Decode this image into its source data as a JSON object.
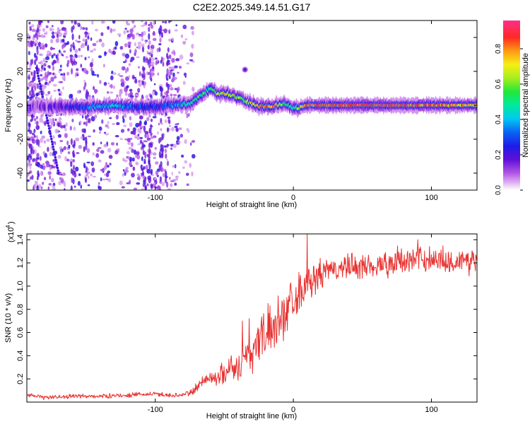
{
  "title": "C2E2.2025.349.14.51.G17",
  "colors": {
    "snr_line": "#e8312f",
    "axis": "#000000",
    "background": "#ffffff"
  },
  "chart_data": [
    {
      "type": "heatmap",
      "id": "spectrogram",
      "xlabel": "Height of straight line (km)",
      "ylabel": "Frequency (Hz)",
      "xlim": [
        -193,
        133
      ],
      "ylim": [
        -50,
        50
      ],
      "xticks": [
        -100,
        0,
        100
      ],
      "yticks": [
        -40,
        -20,
        0,
        20,
        40
      ],
      "colorbar": {
        "label": "Normalized spectral amplitude",
        "range": [
          0,
          0.96
        ],
        "ticks": [
          "0.0",
          "0.2",
          "0.4",
          "0.6",
          "0.8"
        ],
        "colormap": "rainbow (white-magenta-purple-blue-cyan-green-yellow-orange-red-pink)"
      },
      "ridge": {
        "description": "dominant frequency vs height",
        "height_km": [
          -193,
          -185,
          -175,
          -165,
          -150,
          -130,
          -115,
          -100,
          -92,
          -85,
          -75,
          -68,
          -60,
          -55,
          -48,
          -42,
          -35,
          -28,
          -20,
          -12,
          -5,
          0,
          10,
          30,
          60,
          100,
          133
        ],
        "frequency_hz": [
          -2,
          0,
          -1,
          -1,
          -1,
          0,
          -1,
          -1,
          0,
          0,
          1,
          5,
          10,
          7,
          7,
          5,
          3,
          0,
          -1,
          0,
          1,
          -2,
          0,
          0,
          0,
          0,
          0
        ],
        "amplitude": [
          0.2,
          0.15,
          0.15,
          0.2,
          0.3,
          0.45,
          0.3,
          0.25,
          0.3,
          0.4,
          0.5,
          0.55,
          0.6,
          0.7,
          0.75,
          0.7,
          0.6,
          0.75,
          0.85,
          0.8,
          0.55,
          0.5,
          0.9,
          0.9,
          0.9,
          0.85,
          0.8
        ]
      },
      "annotations": [
        "diagonal streak from about -185 km at 20 Hz to -170 km at -40 Hz",
        "isolated blob near -35 km at 20 Hz"
      ]
    },
    {
      "type": "line",
      "id": "snr",
      "xlabel": "Height of straight line (km)",
      "ylabel": "SNR (10 * v/v)",
      "multiplier_label": "(x10",
      "multiplier_exponent": "4",
      "xlim": [
        -193,
        133
      ],
      "ylim": [
        0.0,
        1.45
      ],
      "xticks": [
        -100,
        0,
        100
      ],
      "yticks": [
        "0.2",
        "0.4",
        "0.6",
        "0.8",
        "1.0",
        "1.2",
        "1.4"
      ],
      "series": [
        {
          "name": "SNR",
          "x": [
            -193,
            -180,
            -160,
            -140,
            -120,
            -100,
            -90,
            -80,
            -75,
            -70,
            -65,
            -60,
            -55,
            -50,
            -45,
            -40,
            -35,
            -30,
            -25,
            -20,
            -15,
            -10,
            -5,
            0,
            5,
            10,
            15,
            20,
            25,
            30,
            40,
            50,
            60,
            70,
            80,
            90,
            100,
            110,
            120,
            133
          ],
          "values": [
            0.06,
            0.04,
            0.05,
            0.05,
            0.06,
            0.07,
            0.06,
            0.06,
            0.08,
            0.12,
            0.2,
            0.2,
            0.22,
            0.25,
            0.32,
            0.28,
            0.4,
            0.42,
            0.55,
            0.6,
            0.65,
            0.72,
            0.8,
            0.9,
            0.95,
            1.02,
            1.05,
            1.1,
            1.12,
            1.15,
            1.16,
            1.17,
            1.18,
            1.2,
            1.22,
            1.23,
            1.24,
            1.22,
            1.21,
            1.22
          ],
          "noise": [
            0.02,
            0.02,
            0.02,
            0.02,
            0.02,
            0.02,
            0.02,
            0.02,
            0.03,
            0.05,
            0.06,
            0.07,
            0.08,
            0.1,
            0.12,
            0.12,
            0.16,
            0.18,
            0.2,
            0.22,
            0.22,
            0.22,
            0.2,
            0.2,
            0.18,
            0.15,
            0.14,
            0.13,
            0.12,
            0.12,
            0.12,
            0.12,
            0.12,
            0.12,
            0.12,
            0.12,
            0.12,
            0.12,
            0.12,
            0.12
          ],
          "spikes": [
            {
              "x": 10,
              "y": 1.45
            },
            {
              "x": 90,
              "y": 1.4
            },
            {
              "x": -37,
              "y": 0.7
            },
            {
              "x": -32,
              "y": 0.72
            },
            {
              "x": 4,
              "y": 1.12
            }
          ]
        }
      ]
    }
  ]
}
